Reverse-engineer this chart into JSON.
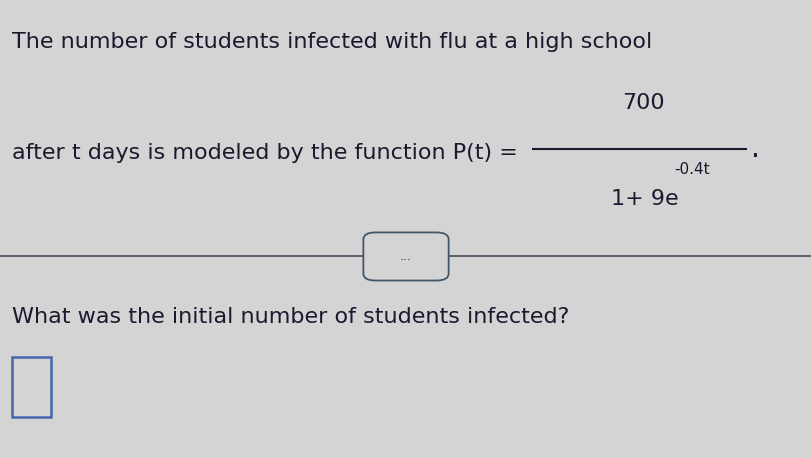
{
  "background_color": "#d4d4d4",
  "text_color": "#1a1a2e",
  "line1": "The number of students infected with flu at a high school",
  "line2_prefix": "after t days is modeled by the function P(t) =",
  "numerator": "700",
  "denominator_text": "1+ 9e",
  "denominator_exp": "-0.4t",
  "question": "What was the initial number of students infected?",
  "dots_text": "...",
  "font_size_main": 16,
  "font_size_small": 11,
  "divider_color": "#555566",
  "box_edge_color": "#4466aa"
}
